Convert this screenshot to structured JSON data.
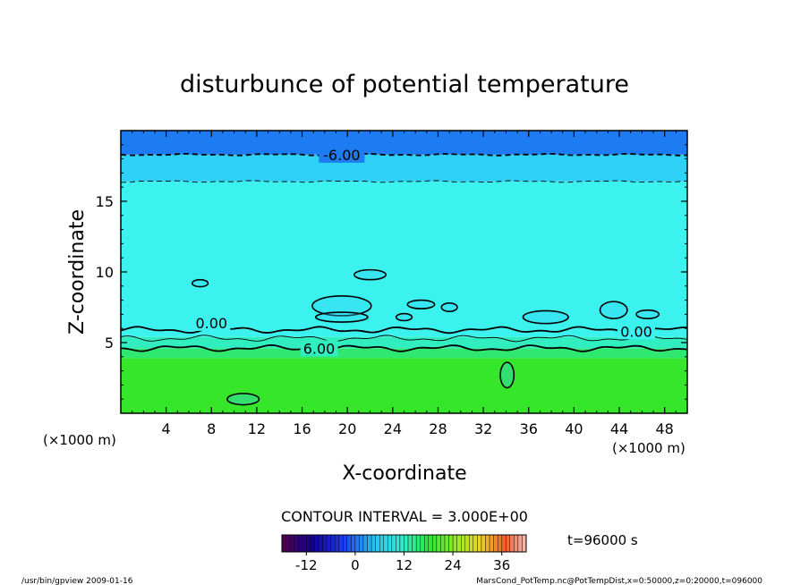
{
  "chart_data": {
    "type": "contour",
    "title": "disturbunce of potential temperature",
    "xlabel": "X-coordinate",
    "ylabel": "Z-coordinate",
    "x_unit_left": "(×1000 m)",
    "x_unit_right": "(×1000 m)",
    "xlim": [
      0,
      50
    ],
    "ylim": [
      0,
      20
    ],
    "xticks": [
      4,
      8,
      12,
      16,
      20,
      24,
      28,
      32,
      36,
      40,
      44,
      48
    ],
    "yticks": [
      5,
      10,
      15
    ],
    "fill_layers": [
      {
        "z_from": 0,
        "z_to": 3.9,
        "value": 6,
        "color": "#36e62a"
      },
      {
        "z_from": 3.9,
        "z_to": 4.6,
        "value": 5,
        "color": "#2ee86f"
      },
      {
        "z_from": 4.6,
        "z_to": 5.4,
        "value": 3,
        "color": "#30eec0"
      },
      {
        "z_from": 5.4,
        "z_to": 16.4,
        "value": 0,
        "color": "#3cf2ee"
      },
      {
        "z_from": 16.4,
        "z_to": 18.3,
        "value": -3,
        "color": "#2ed0f6"
      },
      {
        "z_from": 18.3,
        "z_to": 20,
        "value": -6,
        "color": "#1d7cf2"
      }
    ],
    "contour_lines": [
      {
        "value": -6,
        "label": "-6.00",
        "z": 18.3,
        "style": "dashed-bold"
      },
      {
        "value": -3,
        "label": "",
        "z": 16.4,
        "style": "dashed"
      },
      {
        "value": 0,
        "label": "0.00",
        "z": 5.9,
        "style": "solid-bold"
      },
      {
        "value": 3,
        "label": "",
        "z": 5.3,
        "style": "solid"
      },
      {
        "value": 6,
        "label": "6.00",
        "z": 4.6,
        "style": "solid-bold"
      }
    ],
    "contour_labels": [
      {
        "text": "-6.00",
        "x": 19.5,
        "z": 18.3
      },
      {
        "text": "0.00",
        "x": 8.0,
        "z": 6.4
      },
      {
        "text": "0.00",
        "x": 45.5,
        "z": 5.8
      },
      {
        "text": "6.00",
        "x": 17.5,
        "z": 4.6
      }
    ],
    "blobs": [
      {
        "x": 19.5,
        "z": 7.6,
        "rx": 2.6,
        "rz": 0.7
      },
      {
        "x": 19.5,
        "z": 6.8,
        "rx": 2.3,
        "rz": 0.35
      },
      {
        "x": 22.0,
        "z": 9.8,
        "rx": 1.4,
        "rz": 0.35
      },
      {
        "x": 26.5,
        "z": 7.7,
        "rx": 1.2,
        "rz": 0.3
      },
      {
        "x": 29.0,
        "z": 7.5,
        "rx": 0.7,
        "rz": 0.3
      },
      {
        "x": 25.0,
        "z": 6.8,
        "rx": 0.7,
        "rz": 0.25
      },
      {
        "x": 37.5,
        "z": 6.8,
        "rx": 2.0,
        "rz": 0.45
      },
      {
        "x": 46.5,
        "z": 7.0,
        "rx": 1.0,
        "rz": 0.3
      },
      {
        "x": 43.5,
        "z": 7.3,
        "rx": 1.2,
        "rz": 0.6
      },
      {
        "x": 7.0,
        "z": 9.2,
        "rx": 0.7,
        "rz": 0.25
      },
      {
        "x": 10.8,
        "z": 1.0,
        "rx": 1.4,
        "rz": 0.4
      },
      {
        "x": 34.1,
        "z": 2.7,
        "rx": 0.6,
        "rz": 0.9
      }
    ],
    "contour_interval_text": "CONTOUR INTERVAL = 3.000E+00",
    "time_text": "t=96000 s",
    "colorbar": {
      "range": [
        -18,
        42
      ],
      "ticks": [
        "-12",
        "0",
        "12",
        "24",
        "36"
      ],
      "tick_values": [
        -12,
        0,
        12,
        24,
        36
      ]
    },
    "footer_left": "/usr/bin/gpview   2009-01-16",
    "footer_right": "MarsCond_PotTemp.nc@PotTempDist,x=0:50000,z=0:20000,t=096000"
  }
}
